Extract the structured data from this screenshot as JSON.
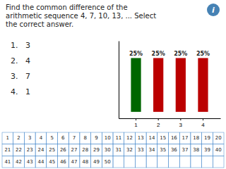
{
  "chart_data": {
    "type": "bar",
    "title": "Find the common difference of the\narithmetic sequence 4, 7, 10, 13, ... Select\nthe correct answer.",
    "annotations": [
      "1.   3",
      "2.   4",
      "3.   7",
      "4.   1"
    ],
    "categories": [
      "1",
      "2",
      "3",
      "4"
    ],
    "values": [
      25,
      25,
      25,
      25
    ],
    "value_labels": [
      "25%",
      "25%",
      "25%",
      "25%"
    ],
    "colors": [
      "#006600",
      "#bb0000",
      "#bb0000",
      "#bb0000"
    ],
    "data_labels": true,
    "ylim": [
      -3,
      33
    ],
    "tick_labels": "x"
  },
  "table": [
    [
      1,
      2,
      3,
      4,
      5,
      6,
      7,
      8,
      9,
      10,
      11,
      12,
      13,
      14,
      15,
      16,
      17,
      18,
      19,
      20
    ],
    [
      21,
      22,
      23,
      24,
      25,
      26,
      27,
      28,
      29,
      30,
      31,
      32,
      33,
      34,
      35,
      36,
      37,
      38,
      39,
      40
    ],
    [
      41,
      42,
      43,
      44,
      45,
      46,
      47,
      48,
      49,
      50
    ]
  ],
  "icon_label": "i"
}
